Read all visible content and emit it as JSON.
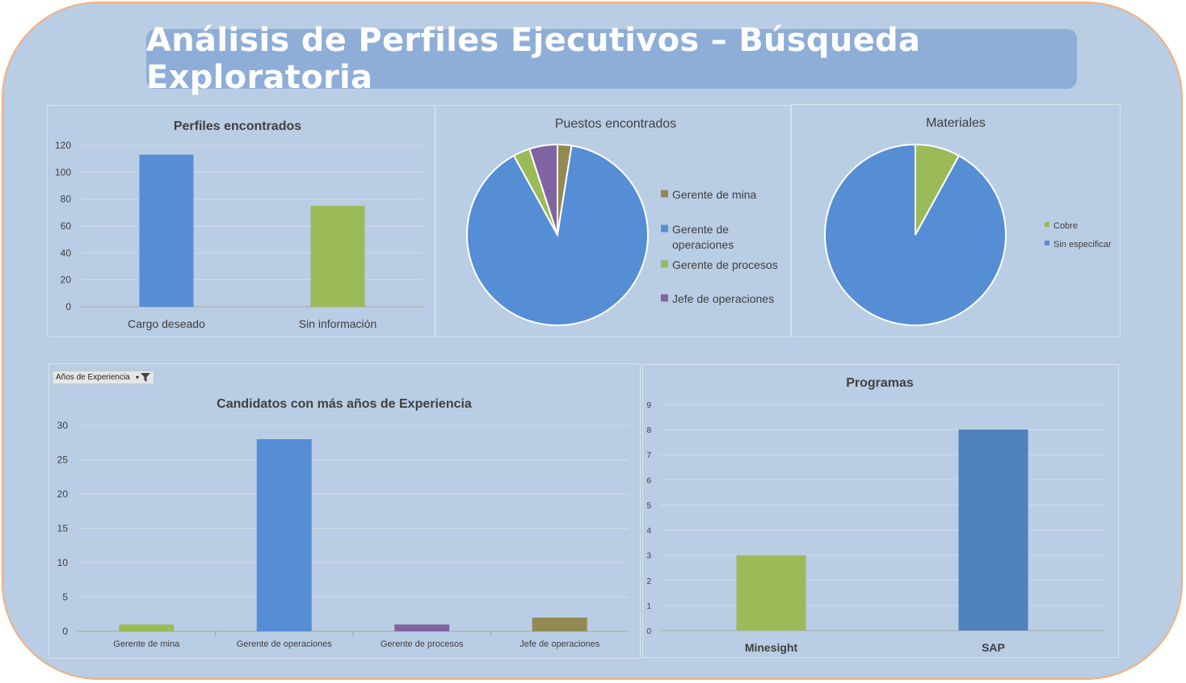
{
  "dashboard": {
    "title": "Análisis de Perfiles Ejecutivos – Búsqueda Exploratoria",
    "filter_button": {
      "label": "Años de Experiencia",
      "icon": "filter-icon"
    }
  },
  "colors": {
    "background": "#b9cde4",
    "banner": "#8eaed8",
    "border_accent": "#f0b080",
    "blue": "#558ed5",
    "green": "#9bbb59",
    "purple": "#8064a2",
    "olive": "#938953",
    "sap_blue": "#4f81bd"
  },
  "chart_data": [
    {
      "id": "perfiles",
      "type": "bar",
      "title": "Perfiles encontrados",
      "categories": [
        "Cargo deseado",
        "Sin información"
      ],
      "values": [
        113,
        75
      ],
      "colors": [
        "#558ed5",
        "#9bbb59"
      ],
      "ylim": [
        0,
        120
      ],
      "yticks": [
        0,
        20,
        40,
        60,
        80,
        100,
        120
      ],
      "grid": true
    },
    {
      "id": "puestos",
      "type": "pie",
      "title": "Puestos encontrados",
      "labels": [
        "Gerente de mina",
        "Gerente de operaciones",
        "Gerente de procesos",
        "Jefe de operaciones"
      ],
      "values": [
        2.5,
        89.5,
        3,
        5
      ],
      "colors": [
        "#938953",
        "#558ed5",
        "#9bbb59",
        "#8064a2"
      ],
      "legend": "right"
    },
    {
      "id": "materiales",
      "type": "pie",
      "title": "Materiales",
      "labels": [
        "Cobre",
        "Sin especificar"
      ],
      "values": [
        8,
        92
      ],
      "colors": [
        "#9bbb59",
        "#558ed5"
      ],
      "legend": "right"
    },
    {
      "id": "experiencia",
      "type": "bar",
      "title": "Candidatos con más años de Experiencia",
      "categories": [
        "Gerente de mina",
        "Gerente de operaciones",
        "Gerente de procesos",
        "Jefe de operaciones"
      ],
      "values": [
        1,
        28,
        1,
        2
      ],
      "colors": [
        "#9bbb59",
        "#558ed5",
        "#8064a2",
        "#938953"
      ],
      "ylim": [
        0,
        30
      ],
      "yticks": [
        0,
        5,
        10,
        15,
        20,
        25,
        30
      ],
      "grid": true
    },
    {
      "id": "programas",
      "type": "bar",
      "title": "Programas",
      "categories": [
        "Minesight",
        "SAP"
      ],
      "values": [
        3,
        8
      ],
      "colors": [
        "#9bbb59",
        "#4f81bd"
      ],
      "ylim": [
        0,
        9
      ],
      "yticks": [
        0,
        1,
        2,
        3,
        4,
        5,
        6,
        7,
        8,
        9
      ],
      "grid": true
    }
  ]
}
